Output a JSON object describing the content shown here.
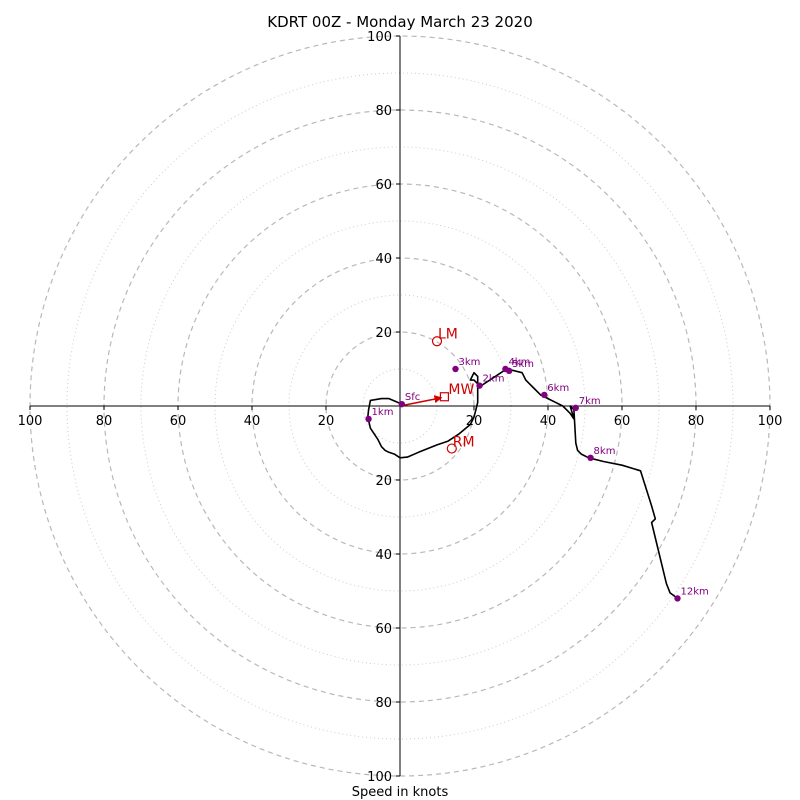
{
  "chart_data": {
    "type": "hodograph",
    "title": "KDRT 00Z - Monday March 23 2020",
    "xlabel": "Speed in knots",
    "axis_range": [
      -100,
      100
    ],
    "x_tick_labels": [
      "100",
      "80",
      "60",
      "40",
      "20",
      "20",
      "40",
      "60",
      "80",
      "100"
    ],
    "y_tick_labels": [
      "100",
      "80",
      "60",
      "40",
      "20",
      "20",
      "40",
      "60",
      "80",
      "100"
    ],
    "ring_values_major": [
      20,
      40,
      60,
      80,
      100
    ],
    "ring_values_minor": [
      10,
      30,
      50,
      70,
      90
    ],
    "hodograph_trace": {
      "color": "#000000",
      "u": [
        0.5,
        -3,
        -5,
        -8,
        -8.5,
        -8.7,
        -8,
        -6,
        -5,
        -4,
        -3,
        -1.5,
        0,
        2,
        5,
        10,
        13,
        16,
        19,
        20,
        20.5,
        21,
        21,
        21,
        21,
        20,
        19,
        20,
        21,
        22,
        25,
        28,
        29,
        33,
        34,
        35,
        36,
        38,
        40,
        42,
        44,
        45,
        46,
        47,
        46,
        47,
        47.5,
        48,
        49,
        51,
        55,
        60,
        65,
        68,
        69,
        68,
        72,
        73,
        75
      ],
      "v": [
        0.5,
        2,
        2,
        1.5,
        -1,
        -3,
        -6,
        -9,
        -11,
        -12,
        -12.5,
        -13,
        -14,
        -13.8,
        -12.5,
        -10.5,
        -9.5,
        -7.5,
        -5,
        -3,
        -1,
        1,
        4,
        6,
        8,
        9,
        7,
        7,
        6,
        5.5,
        7.5,
        9.5,
        10,
        9,
        7,
        6,
        5,
        3,
        2,
        1,
        0,
        -1,
        -2,
        -3.5,
        0,
        -1,
        -10,
        -12,
        -13,
        -14,
        -15,
        -16,
        -17.5,
        -27,
        -30.5,
        -31.5,
        -48,
        -50.5,
        -52
      ]
    },
    "height_labels": [
      {
        "label": "Sfc",
        "u": 0.5,
        "v": 0.5
      },
      {
        "label": "1km",
        "u": -8.5,
        "v": -3.5
      },
      {
        "label": "2km",
        "u": 21.5,
        "v": 5.5
      },
      {
        "label": "3km",
        "u": 15,
        "v": 10
      },
      {
        "label": "4km",
        "u": 28.5,
        "v": 10
      },
      {
        "label": "5km",
        "u": 29.5,
        "v": 9.5
      },
      {
        "label": "6km",
        "u": 39,
        "v": 3
      },
      {
        "label": "7km",
        "u": 47.5,
        "v": -0.5
      },
      {
        "label": "8km",
        "u": 51.5,
        "v": -14
      },
      {
        "label": "12km",
        "u": 75,
        "v": -52
      }
    ],
    "height_color": "#800080",
    "storm_motion": {
      "color": "#d00000",
      "lm": {
        "label": "LM",
        "u": 10,
        "v": 17.5
      },
      "mw": {
        "label": "MW",
        "u": 12,
        "v": 2.5
      },
      "rm": {
        "label": "RM",
        "u": 14,
        "v": -11.5
      }
    }
  }
}
